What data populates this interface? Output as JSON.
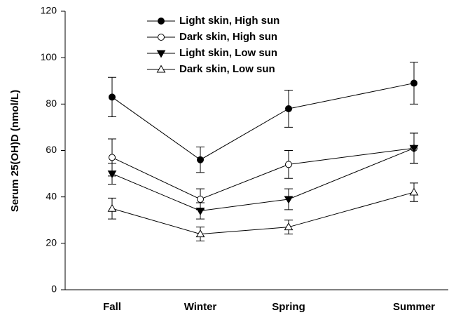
{
  "chart_data": {
    "type": "line",
    "y_label": "Serum 25(OH)D (nmol/L)",
    "categories": [
      "Fall",
      "Winter",
      "Spring",
      "Summer"
    ],
    "ylim": [
      0,
      120
    ],
    "yticks": [
      0,
      20,
      40,
      60,
      80,
      100,
      120
    ],
    "legend": "top",
    "series": [
      {
        "name": "Light skin, High sun",
        "color": "#000000",
        "marker": "circle",
        "filled": true,
        "values": [
          83,
          56,
          78,
          89
        ],
        "errors": [
          8.5,
          5.5,
          8,
          9
        ]
      },
      {
        "name": "Dark skin, High sun",
        "color": "#000000",
        "marker": "circle",
        "filled": false,
        "values": [
          57,
          39,
          54,
          61
        ],
        "errors": [
          8,
          4.5,
          6,
          6.5
        ]
      },
      {
        "name": "Light skin, Low sun",
        "color": "#000000",
        "marker": "triangle-down",
        "filled": true,
        "values": [
          50,
          34,
          39,
          61
        ],
        "errors": [
          4.5,
          3.5,
          4.5,
          6.5
        ]
      },
      {
        "name": "Dark skin, Low sun",
        "color": "#000000",
        "marker": "triangle-up",
        "filled": false,
        "values": [
          35,
          24,
          27,
          42
        ],
        "errors": [
          4.5,
          3,
          3,
          4
        ]
      }
    ]
  }
}
